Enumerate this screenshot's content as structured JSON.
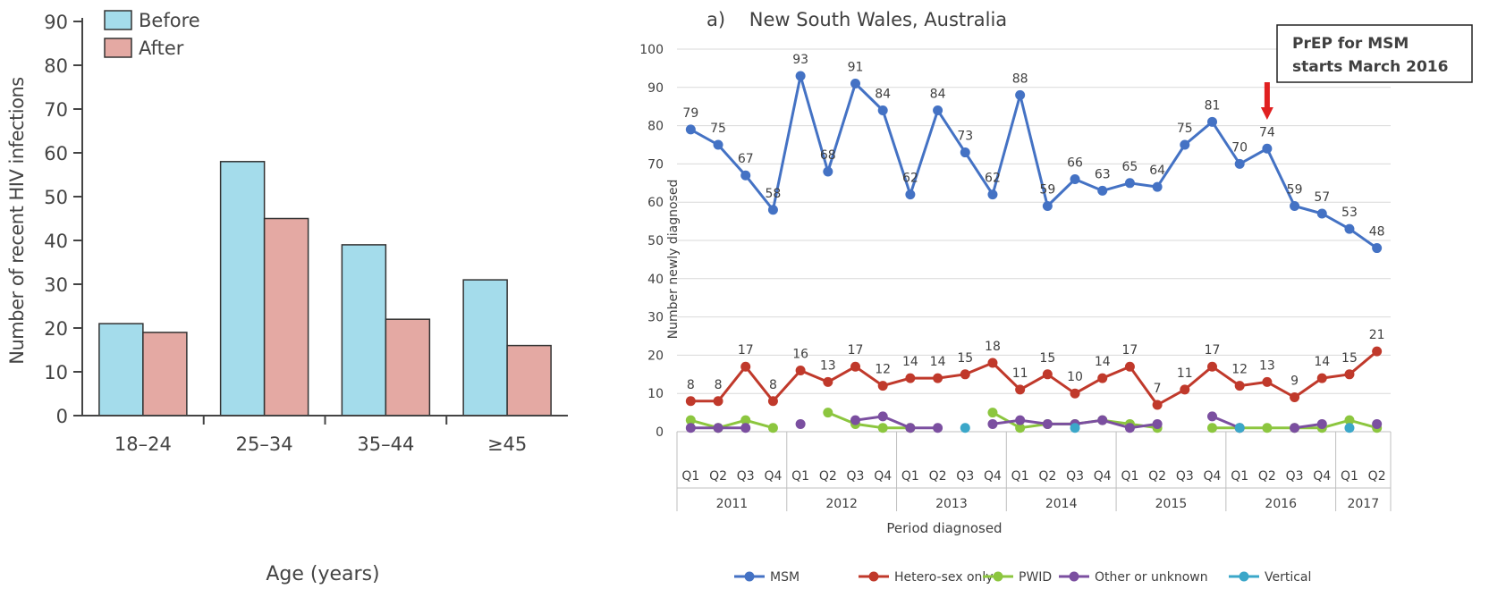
{
  "chart_data": [
    {
      "type": "bar",
      "title": "",
      "xlabel": "Age (years)",
      "ylabel": "Number of recent HIV infections",
      "ylim": [
        0,
        90
      ],
      "yticks": [
        "0",
        "10",
        "20",
        "30",
        "40",
        "50",
        "60",
        "70",
        "80",
        "90"
      ],
      "categories": [
        "18–24",
        "25–34",
        "35–44",
        "≥45"
      ],
      "legend_position": "top-left",
      "grid": false,
      "series": [
        {
          "name": "Before",
          "values": [
            21,
            58,
            39,
            31
          ],
          "color": "#a4dceb"
        },
        {
          "name": "After",
          "values": [
            19,
            45,
            22,
            16
          ],
          "color": "#e4a9a3"
        }
      ]
    },
    {
      "type": "line",
      "title": "a)    New South Wales, Australia",
      "xlabel": "Period diagnosed",
      "ylabel": "Number newly diagnosed",
      "ylim": [
        0,
        100
      ],
      "yticks": [
        "0",
        "10",
        "20",
        "30",
        "40",
        "50",
        "60",
        "70",
        "80",
        "90",
        "100"
      ],
      "quarters": [
        "Q1",
        "Q2",
        "Q3",
        "Q4",
        "Q1",
        "Q2",
        "Q3",
        "Q4",
        "Q1",
        "Q2",
        "Q3",
        "Q4",
        "Q1",
        "Q2",
        "Q3",
        "Q4",
        "Q1",
        "Q2",
        "Q3",
        "Q4",
        "Q1",
        "Q2",
        "Q3",
        "Q4",
        "Q1",
        "Q2"
      ],
      "years": [
        {
          "label": "2011",
          "quarters": 4
        },
        {
          "label": "2012",
          "quarters": 4
        },
        {
          "label": "2013",
          "quarters": 4
        },
        {
          "label": "2014",
          "quarters": 4
        },
        {
          "label": "2015",
          "quarters": 4
        },
        {
          "label": "2016",
          "quarters": 4
        },
        {
          "label": "2017",
          "quarters": 2
        }
      ],
      "legend_position": "bottom",
      "grid": true,
      "series": [
        {
          "name": "MSM",
          "color": "#4472c4",
          "labeled": true,
          "values": [
            79,
            75,
            67,
            58,
            93,
            68,
            91,
            84,
            62,
            84,
            73,
            62,
            88,
            59,
            66,
            63,
            65,
            64,
            75,
            81,
            70,
            74,
            59,
            57,
            53,
            48
          ]
        },
        {
          "name": "Hetero-sex only",
          "color": "#c0392b",
          "labeled": true,
          "values": [
            8,
            8,
            17,
            8,
            16,
            13,
            17,
            12,
            14,
            14,
            15,
            18,
            11,
            15,
            10,
            14,
            17,
            7,
            11,
            17,
            12,
            13,
            9,
            14,
            15,
            21
          ]
        },
        {
          "name": "PWID",
          "color": "#8cc63f",
          "labeled": false,
          "values": [
            3,
            1,
            3,
            1,
            null,
            5,
            2,
            1,
            1,
            null,
            null,
            5,
            1,
            2,
            2,
            3,
            2,
            1,
            null,
            1,
            1,
            1,
            1,
            1,
            3,
            1
          ]
        },
        {
          "name": "Other or unknown",
          "color": "#7b4fa0",
          "labeled": false,
          "values": [
            1,
            1,
            1,
            null,
            2,
            null,
            3,
            4,
            1,
            1,
            null,
            2,
            3,
            2,
            2,
            3,
            1,
            2,
            null,
            4,
            1,
            null,
            1,
            2,
            null,
            2
          ]
        },
        {
          "name": "Vertical",
          "color": "#3ba7c9",
          "labeled": false,
          "values": [
            null,
            null,
            null,
            null,
            null,
            null,
            null,
            null,
            null,
            null,
            1,
            null,
            null,
            null,
            1,
            null,
            null,
            null,
            null,
            null,
            1,
            null,
            null,
            null,
            1,
            null
          ]
        }
      ],
      "annotation": {
        "line1": "PrEP for MSM",
        "line2": "starts March 2016",
        "arrow_color": "#e02020",
        "target_quarter_index": 21
      }
    }
  ]
}
